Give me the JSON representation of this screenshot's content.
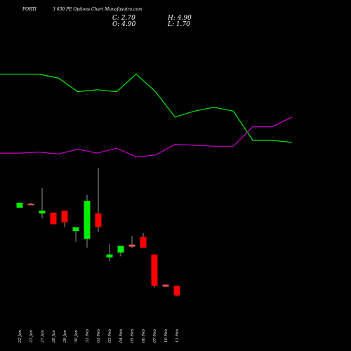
{
  "header": {
    "symbol": "FORTI",
    "subtitle": "3 630 PE Options Chart Munafasutra.com",
    "close_label": "C: 2.70",
    "high_label": "H: 4.90",
    "open_label": "O: 4.90",
    "low_label": "L: 1.70"
  },
  "chart_data": {
    "type": "candlestick",
    "title": "FORTI 3 630 PE Options Chart Munafasutra.com",
    "categories": [
      "22 Jan",
      "23 Jan",
      "27 Jan",
      "28 Jan",
      "29 Jan",
      "30 Jan",
      "31 Feb",
      "01 Feb",
      "03 Feb",
      "04 Feb",
      "05 Feb",
      "06 Feb",
      "07 Feb",
      "10 Feb",
      "11 Feb"
    ],
    "candles": [
      {
        "open": 7.35,
        "high": 7.55,
        "low": 7.35,
        "close": 7.6,
        "color": "#00ee00"
      },
      {
        "open": 7.55,
        "high": 7.6,
        "low": 7.5,
        "close": 7.55,
        "color": "#ff5555"
      },
      {
        "open": 7.2,
        "high": 8.35,
        "low": 6.8,
        "close": 7.05,
        "color": "#00ee00"
      },
      {
        "open": 7.1,
        "high": 7.1,
        "low": 6.5,
        "close": 6.5,
        "color": "#ff0000"
      },
      {
        "open": 7.2,
        "high": 7.2,
        "low": 6.35,
        "close": 6.6,
        "color": "#ff0000"
      },
      {
        "open": 6.15,
        "high": 6.35,
        "low": 5.6,
        "close": 6.35,
        "color": "#00ee00"
      },
      {
        "open": 5.75,
        "high": 8.0,
        "low": 5.3,
        "close": 7.7,
        "color": "#00ee00"
      },
      {
        "open": 7.05,
        "high": 9.4,
        "low": 6.1,
        "close": 6.35,
        "color": "#ff0000"
      },
      {
        "open": 4.8,
        "high": 5.5,
        "low": 4.6,
        "close": 4.95,
        "color": "#00ee00"
      },
      {
        "open": 5.05,
        "high": 5.35,
        "low": 4.85,
        "close": 5.4,
        "color": "#00ee00"
      },
      {
        "open": 5.45,
        "high": 5.9,
        "low": 5.3,
        "close": 5.35,
        "color": "#ff5555"
      },
      {
        "open": 5.85,
        "high": 6.05,
        "low": 5.3,
        "close": 5.3,
        "color": "#ff0000"
      },
      {
        "open": 4.95,
        "high": 4.95,
        "low": 3.25,
        "close": 3.35,
        "color": "#ff0000"
      },
      {
        "open": 3.4,
        "high": 3.4,
        "low": 3.3,
        "close": 3.3,
        "color": "#ff5555"
      },
      {
        "open": 3.35,
        "high": 3.35,
        "low": 2.8,
        "close": 2.85,
        "color": "#ff0000"
      }
    ],
    "series": [
      {
        "values": [
          14.2,
          14.2,
          14.2,
          14.0,
          13.3,
          13.4,
          13.3,
          14.2,
          13.3,
          12.0,
          12.3,
          12.5,
          12.3,
          10.8,
          10.8
        ],
        "color": "#00ee00"
      },
      {
        "values": [
          10.15,
          10.15,
          10.2,
          10.1,
          10.35,
          10.15,
          10.4,
          9.95,
          10.05,
          10.6,
          10.55,
          10.5,
          10.5,
          11.5,
          11.5
        ],
        "color": "#cc00cc"
      }
    ],
    "extra_points": {
      "green_end": 10.7,
      "magenta_end": 12.0
    },
    "ylim": [
      0,
      18
    ]
  }
}
